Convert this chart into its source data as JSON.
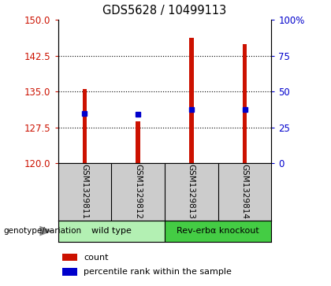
{
  "title": "GDS5628 / 10499113",
  "samples": [
    "GSM1329811",
    "GSM1329812",
    "GSM1329813",
    "GSM1329814"
  ],
  "bar_bottoms": [
    120,
    120,
    120,
    120
  ],
  "bar_tops": [
    135.5,
    128.8,
    146.2,
    145.0
  ],
  "blue_marker_values": [
    130.4,
    130.2,
    131.2,
    131.2
  ],
  "bar_color": "#cc1100",
  "blue_color": "#0000cc",
  "ylim": [
    120,
    150
  ],
  "yticks_left": [
    120,
    127.5,
    135,
    142.5,
    150
  ],
  "yticks_right_labels": [
    "0",
    "25",
    "50",
    "75",
    "100%"
  ],
  "yticks_right_vals": [
    0,
    25,
    50,
    75,
    100
  ],
  "left_tick_color": "#cc1100",
  "right_tick_color": "#0000cc",
  "groups": [
    {
      "label": "wild type",
      "indices": [
        0,
        1
      ],
      "color": "#b3f0b3"
    },
    {
      "label": "Rev-erbα knockout",
      "indices": [
        2,
        3
      ],
      "color": "#44cc44"
    }
  ],
  "legend_items": [
    {
      "label": "count",
      "color": "#cc1100"
    },
    {
      "label": "percentile rank within the sample",
      "color": "#0000cc"
    }
  ],
  "genotype_label": "genotype/variation",
  "bar_width": 0.08,
  "sample_bg": "#cccccc",
  "background_color": "#ffffff"
}
